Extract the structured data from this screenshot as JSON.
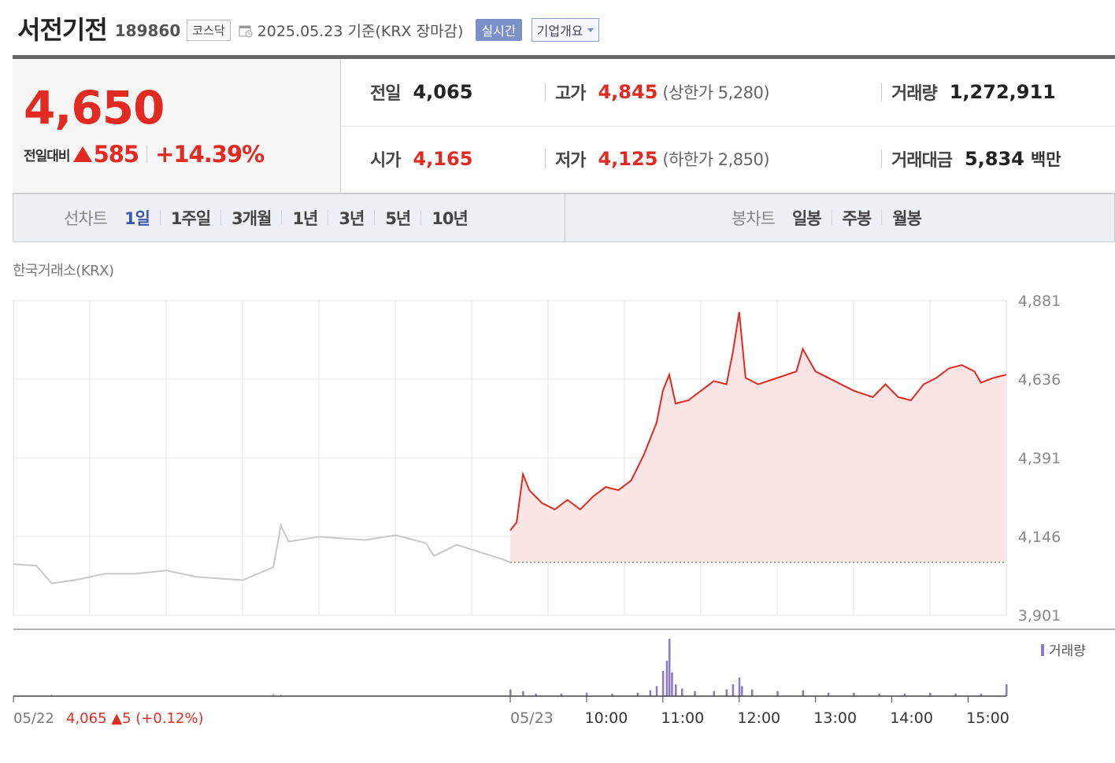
{
  "stock": {
    "name": "서전기전",
    "code": "189860",
    "market": "코스닥",
    "date_text": "2025.05.23 기준(KRX 장마감)",
    "realtime_label": "실시간",
    "company_info_label": "기업개요"
  },
  "quote": {
    "price": "4,650",
    "change_label": "전일대비",
    "change": "585",
    "change_pct": "+14.39%",
    "prev_close_label": "전일",
    "prev_close": "4,065",
    "open_label": "시가",
    "open": "4,165",
    "high_label": "고가",
    "high": "4,845",
    "upper_limit": "(상한가 5,280)",
    "low_label": "저가",
    "low": "4,125",
    "lower_limit": "(하한가 2,850)",
    "volume_label": "거래량",
    "volume": "1,272,911",
    "amount_label": "거래대금",
    "amount": "5,834",
    "amount_unit": "백만"
  },
  "tabs": {
    "line_label": "선차트",
    "line_periods": [
      "1일",
      "1주일",
      "3개월",
      "1년",
      "3년",
      "5년",
      "10년"
    ],
    "active": "1일",
    "candle_label": "봉차트",
    "candle_periods": [
      "일봉",
      "주봉",
      "월봉"
    ]
  },
  "chart_data": {
    "type": "line",
    "exchange_label": "한국거래소(KRX)",
    "y_ticks": [
      "4,881",
      "4,636",
      "4,391",
      "4,146",
      "3,901"
    ],
    "ylim": [
      3901,
      4881
    ],
    "x_tick_labels": [
      "05/23",
      "10:00",
      "11:00",
      "12:00",
      "13:00",
      "14:00",
      "15:00"
    ],
    "prev_day_date": "05/22",
    "prev_day_summary": "4,065 ▲5 (+0.12%)",
    "prev_close_reference": 4065,
    "volume_legend": "거래량",
    "colors": {
      "up": "#e12a22",
      "fill": "#fbe5e5",
      "prev_line": "#c8c8c8",
      "volume": "#8a79c6",
      "grid": "#e6e6e6"
    },
    "prev_day_series": [
      {
        "t": 0,
        "v": 4060
      },
      {
        "t": 0.3,
        "v": 4055
      },
      {
        "t": 0.5,
        "v": 4000
      },
      {
        "t": 0.8,
        "v": 4010
      },
      {
        "t": 1.2,
        "v": 4030
      },
      {
        "t": 1.6,
        "v": 4030
      },
      {
        "t": 2.0,
        "v": 4040
      },
      {
        "t": 2.4,
        "v": 4020
      },
      {
        "t": 3.0,
        "v": 4010
      },
      {
        "t": 3.4,
        "v": 4050
      },
      {
        "t": 3.5,
        "v": 4180
      },
      {
        "t": 3.6,
        "v": 4130
      },
      {
        "t": 4.0,
        "v": 4145
      },
      {
        "t": 4.6,
        "v": 4135
      },
      {
        "t": 5.0,
        "v": 4150
      },
      {
        "t": 5.4,
        "v": 4125
      },
      {
        "t": 5.5,
        "v": 4085
      },
      {
        "t": 5.8,
        "v": 4120
      },
      {
        "t": 6.4,
        "v": 4075
      },
      {
        "t": 6.5,
        "v": 4065
      }
    ],
    "series": [
      {
        "time": "09:00",
        "v": 4165
      },
      {
        "time": "09:05",
        "v": 4190
      },
      {
        "time": "09:10",
        "v": 4340
      },
      {
        "time": "09:15",
        "v": 4290
      },
      {
        "time": "09:20",
        "v": 4270
      },
      {
        "time": "09:25",
        "v": 4250
      },
      {
        "time": "09:35",
        "v": 4230
      },
      {
        "time": "09:45",
        "v": 4260
      },
      {
        "time": "09:55",
        "v": 4230
      },
      {
        "time": "10:05",
        "v": 4270
      },
      {
        "time": "10:15",
        "v": 4300
      },
      {
        "time": "10:25",
        "v": 4290
      },
      {
        "time": "10:35",
        "v": 4320
      },
      {
        "time": "10:45",
        "v": 4400
      },
      {
        "time": "10:55",
        "v": 4500
      },
      {
        "time": "11:00",
        "v": 4600
      },
      {
        "time": "11:05",
        "v": 4650
      },
      {
        "time": "11:10",
        "v": 4560
      },
      {
        "time": "11:20",
        "v": 4570
      },
      {
        "time": "11:30",
        "v": 4600
      },
      {
        "time": "11:40",
        "v": 4630
      },
      {
        "time": "11:50",
        "v": 4620
      },
      {
        "time": "11:55",
        "v": 4720
      },
      {
        "time": "12:00",
        "v": 4845
      },
      {
        "time": "12:05",
        "v": 4640
      },
      {
        "time": "12:15",
        "v": 4620
      },
      {
        "time": "12:30",
        "v": 4640
      },
      {
        "time": "12:45",
        "v": 4660
      },
      {
        "time": "12:50",
        "v": 4730
      },
      {
        "time": "13:00",
        "v": 4660
      },
      {
        "time": "13:15",
        "v": 4630
      },
      {
        "time": "13:30",
        "v": 4600
      },
      {
        "time": "13:45",
        "v": 4580
      },
      {
        "time": "13:55",
        "v": 4620
      },
      {
        "time": "14:05",
        "v": 4580
      },
      {
        "time": "14:15",
        "v": 4570
      },
      {
        "time": "14:25",
        "v": 4620
      },
      {
        "time": "14:35",
        "v": 4640
      },
      {
        "time": "14:45",
        "v": 4670
      },
      {
        "time": "14:55",
        "v": 4680
      },
      {
        "time": "15:05",
        "v": 4660
      },
      {
        "time": "15:10",
        "v": 4625
      },
      {
        "time": "15:20",
        "v": 4640
      },
      {
        "time": "15:30",
        "v": 4650
      }
    ],
    "volume_bars": [
      {
        "time": "09:00",
        "v": 8
      },
      {
        "time": "09:10",
        "v": 6
      },
      {
        "time": "09:20",
        "v": 3
      },
      {
        "time": "09:40",
        "v": 3
      },
      {
        "time": "10:00",
        "v": 4
      },
      {
        "time": "10:20",
        "v": 3
      },
      {
        "time": "10:40",
        "v": 4
      },
      {
        "time": "10:50",
        "v": 7
      },
      {
        "time": "10:55",
        "v": 12
      },
      {
        "time": "11:00",
        "v": 30
      },
      {
        "time": "11:03",
        "v": 42
      },
      {
        "time": "11:05",
        "v": 68
      },
      {
        "time": "11:07",
        "v": 28
      },
      {
        "time": "11:10",
        "v": 14
      },
      {
        "time": "11:15",
        "v": 9
      },
      {
        "time": "11:25",
        "v": 6
      },
      {
        "time": "11:40",
        "v": 6
      },
      {
        "time": "11:50",
        "v": 8
      },
      {
        "time": "11:55",
        "v": 14
      },
      {
        "time": "12:00",
        "v": 22
      },
      {
        "time": "12:02",
        "v": 12
      },
      {
        "time": "12:10",
        "v": 8
      },
      {
        "time": "12:30",
        "v": 6
      },
      {
        "time": "12:50",
        "v": 7
      },
      {
        "time": "13:10",
        "v": 4
      },
      {
        "time": "13:30",
        "v": 4
      },
      {
        "time": "13:50",
        "v": 3
      },
      {
        "time": "14:10",
        "v": 3
      },
      {
        "time": "14:30",
        "v": 4
      },
      {
        "time": "14:50",
        "v": 3
      },
      {
        "time": "15:10",
        "v": 3
      },
      {
        "time": "15:30",
        "v": 14
      }
    ],
    "prev_volume_bars": [
      {
        "t": 0.5,
        "v": 2
      },
      {
        "t": 3.4,
        "v": 3
      },
      {
        "t": 3.5,
        "v": 2
      }
    ]
  }
}
